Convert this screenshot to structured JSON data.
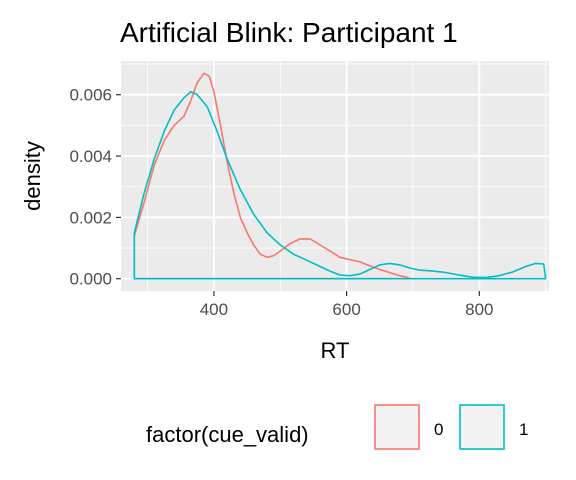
{
  "chart_data": {
    "type": "line",
    "title": "Artificial Blink: Participant 1",
    "xlabel": "RT",
    "ylabel": "density",
    "xlim": [
      260,
      905
    ],
    "ylim": [
      -0.0004,
      0.0071
    ],
    "x_ticks": [
      400,
      600,
      800
    ],
    "x_tick_labels": [
      "400",
      "600",
      "800"
    ],
    "y_ticks": [
      0.0,
      0.002,
      0.004,
      0.006
    ],
    "y_tick_labels": [
      "0.000",
      "0.002",
      "0.004",
      "0.006"
    ],
    "grid": true,
    "legend": {
      "title": "factor(cue_valid)",
      "position": "bottom"
    },
    "series": [
      {
        "name": "0",
        "color": "#F8766D",
        "points": [
          [
            280,
            0.0014
          ],
          [
            295,
            0.0025
          ],
          [
            310,
            0.0037
          ],
          [
            325,
            0.0045
          ],
          [
            340,
            0.005
          ],
          [
            355,
            0.0053
          ],
          [
            365,
            0.0058
          ],
          [
            375,
            0.0064
          ],
          [
            385,
            0.0067
          ],
          [
            393,
            0.0066
          ],
          [
            400,
            0.0061
          ],
          [
            410,
            0.005
          ],
          [
            420,
            0.0038
          ],
          [
            430,
            0.0028
          ],
          [
            440,
            0.002
          ],
          [
            450,
            0.0015
          ],
          [
            460,
            0.0011
          ],
          [
            470,
            0.0008
          ],
          [
            480,
            0.0007
          ],
          [
            490,
            0.00075
          ],
          [
            500,
            0.0009
          ],
          [
            515,
            0.00115
          ],
          [
            530,
            0.0013
          ],
          [
            545,
            0.0013
          ],
          [
            560,
            0.0011
          ],
          [
            575,
            0.0009
          ],
          [
            590,
            0.0007
          ],
          [
            605,
            0.00062
          ],
          [
            620,
            0.00055
          ],
          [
            635,
            0.00042
          ],
          [
            650,
            0.0003
          ],
          [
            665,
            0.0002
          ],
          [
            680,
            0.0001
          ],
          [
            690,
            5e-05
          ],
          [
            697,
            0.0
          ]
        ]
      },
      {
        "name": "1",
        "color": "#00BFC4",
        "points": [
          [
            280,
            0.0015
          ],
          [
            295,
            0.0028
          ],
          [
            310,
            0.0039
          ],
          [
            325,
            0.0048
          ],
          [
            340,
            0.0055
          ],
          [
            355,
            0.0059
          ],
          [
            365,
            0.0061
          ],
          [
            375,
            0.006
          ],
          [
            390,
            0.0056
          ],
          [
            405,
            0.0048
          ],
          [
            420,
            0.0039
          ],
          [
            440,
            0.0029
          ],
          [
            460,
            0.0021
          ],
          [
            480,
            0.0015
          ],
          [
            500,
            0.0011
          ],
          [
            520,
            0.0008
          ],
          [
            540,
            0.0006
          ],
          [
            560,
            0.0004
          ],
          [
            575,
            0.00025
          ],
          [
            590,
            0.00012
          ],
          [
            605,
            0.0001
          ],
          [
            620,
            0.00015
          ],
          [
            635,
            0.0003
          ],
          [
            650,
            0.00045
          ],
          [
            665,
            0.0005
          ],
          [
            680,
            0.00045
          ],
          [
            695,
            0.00035
          ],
          [
            710,
            0.00028
          ],
          [
            730,
            0.00025
          ],
          [
            750,
            0.0002
          ],
          [
            770,
            0.00012
          ],
          [
            790,
            5e-05
          ],
          [
            810,
            4e-05
          ],
          [
            830,
            0.0001
          ],
          [
            850,
            0.00022
          ],
          [
            870,
            0.0004
          ],
          [
            885,
            0.0005
          ],
          [
            897,
            0.00048
          ],
          [
            900,
            0.0
          ]
        ]
      }
    ]
  }
}
